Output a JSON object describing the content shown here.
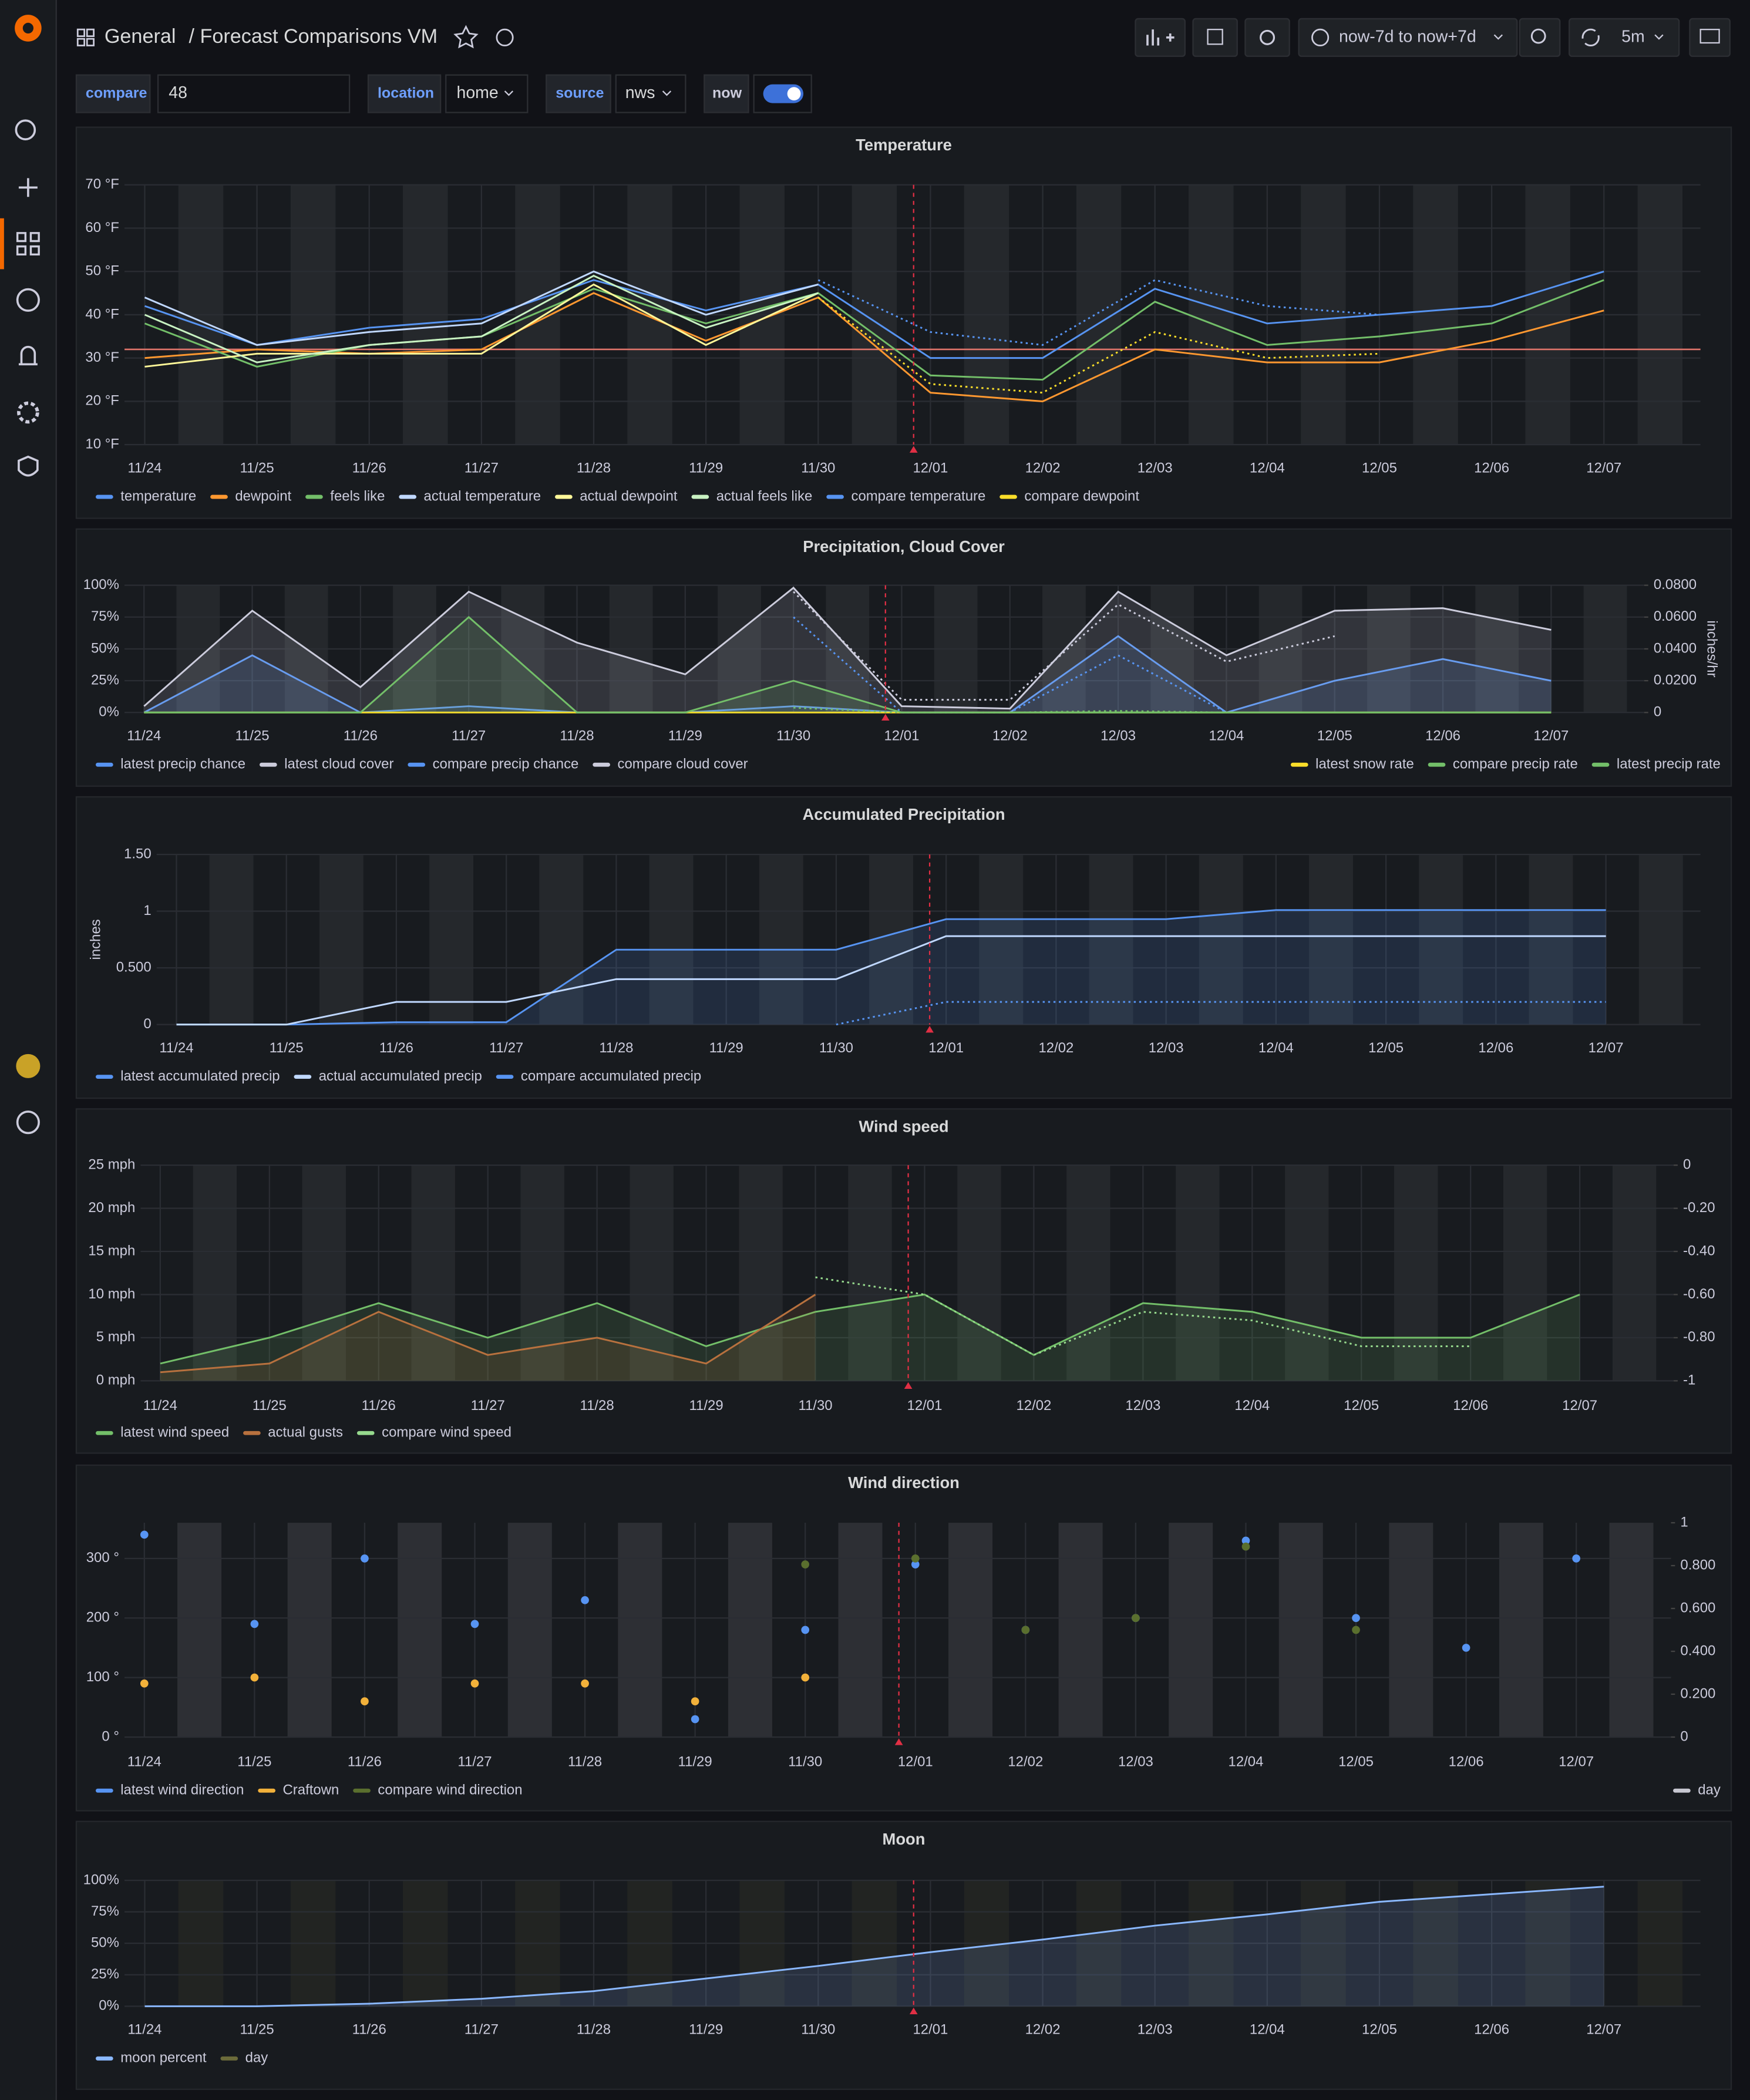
{
  "header": {
    "folder": "General",
    "title": "/ Forecast Comparisons VM",
    "time_range": "now-7d to now+7d",
    "refresh": "5m"
  },
  "variables": [
    {
      "label": "compare",
      "value": "48"
    },
    {
      "label": "location",
      "value": "home"
    },
    {
      "label": "source",
      "value": "nws"
    },
    {
      "label": "now"
    }
  ],
  "chart_data": [
    {
      "type": "line",
      "title": "Temperature",
      "x": [
        "11/24",
        "11/25",
        "11/26",
        "11/27",
        "11/28",
        "11/29",
        "11/30",
        "12/01",
        "12/02",
        "12/03",
        "12/04",
        "12/05",
        "12/06",
        "12/07"
      ],
      "ylim": [
        10,
        70
      ],
      "yticks": [
        {
          "value": 10,
          "label": "10 °F"
        },
        {
          "value": 20,
          "label": "20 °F"
        },
        {
          "value": 30,
          "label": "30 °F"
        },
        {
          "value": 40,
          "label": "40 °F"
        },
        {
          "value": 50,
          "label": "50 °F"
        },
        {
          "value": 60,
          "label": "60 °F"
        },
        {
          "value": 70,
          "label": "70 °F"
        }
      ],
      "threshold": 32,
      "threshold_color": "#e0756b",
      "series": [
        {
          "name": "temperature",
          "color": "#5794f2",
          "values": [
            42,
            33,
            37,
            39,
            48,
            41,
            47,
            30,
            30,
            46,
            38,
            40,
            42,
            50
          ]
        },
        {
          "name": "dewpoint",
          "color": "#ff9830",
          "values": [
            30,
            32,
            31,
            32,
            45,
            34,
            44,
            22,
            20,
            32,
            29,
            29,
            34,
            41
          ]
        },
        {
          "name": "feels like",
          "color": "#73bf69",
          "values": [
            38,
            28,
            33,
            35,
            46,
            38,
            45,
            26,
            25,
            43,
            33,
            35,
            38,
            48
          ]
        },
        {
          "name": "actual temperature",
          "color": "#c0d8ff",
          "values": [
            44,
            33,
            36,
            38,
            50,
            40,
            47,
            null,
            null,
            null,
            null,
            null,
            null,
            null
          ]
        },
        {
          "name": "actual dewpoint",
          "color": "#fff899",
          "values": [
            28,
            31,
            31,
            31,
            47,
            33,
            45,
            null,
            null,
            null,
            null,
            null,
            null,
            null
          ]
        },
        {
          "name": "actual feels like",
          "color": "#c8f2c2",
          "values": [
            40,
            29,
            33,
            35,
            49,
            37,
            45,
            null,
            null,
            null,
            null,
            null,
            null,
            null
          ]
        },
        {
          "name": "compare temperature",
          "color": "#5794f2",
          "style": "dotted",
          "values": [
            null,
            null,
            null,
            null,
            null,
            null,
            48,
            36,
            33,
            48,
            42,
            40,
            null,
            null
          ]
        },
        {
          "name": "compare dewpoint",
          "color": "#fade2a",
          "style": "dotted",
          "values": [
            null,
            null,
            null,
            null,
            null,
            null,
            44,
            24,
            22,
            36,
            30,
            31,
            null,
            null
          ]
        }
      ]
    },
    {
      "type": "line",
      "title": "Precipitation, Cloud Cover",
      "x": [
        "11/24",
        "11/25",
        "11/26",
        "11/27",
        "11/28",
        "11/29",
        "11/30",
        "12/01",
        "12/02",
        "12/03",
        "12/04",
        "12/05",
        "12/06",
        "12/07"
      ],
      "ylim": [
        0,
        100
      ],
      "yticks": [
        {
          "value": 0,
          "label": "0%"
        },
        {
          "value": 25,
          "label": "25%"
        },
        {
          "value": 50,
          "label": "50%"
        },
        {
          "value": 75,
          "label": "75%"
        },
        {
          "value": 100,
          "label": "100%"
        }
      ],
      "y2lim": [
        0,
        0.08
      ],
      "y2ticks": [
        0,
        {
          "value": 0.02,
          "label": "0.0200"
        },
        {
          "value": 0.04,
          "label": "0.0400"
        },
        {
          "value": 0.06,
          "label": "0.0600"
        },
        {
          "value": 0.08,
          "label": "0.0800"
        }
      ],
      "y2label": "inches/hr",
      "series": [
        {
          "name": "latest precip chance",
          "color": "#5794f2",
          "fill": true,
          "values": [
            0,
            45,
            0,
            5,
            0,
            0,
            5,
            0,
            0,
            60,
            0,
            25,
            42,
            25
          ]
        },
        {
          "name": "latest cloud cover",
          "color": "#ccccdc",
          "fill": true,
          "values": [
            5,
            80,
            20,
            95,
            55,
            30,
            98,
            5,
            3,
            95,
            45,
            80,
            82,
            65
          ]
        },
        {
          "name": "compare precip chance",
          "color": "#5794f2",
          "style": "dotted",
          "values": [
            null,
            null,
            null,
            null,
            null,
            null,
            75,
            0,
            0,
            45,
            0,
            null,
            null,
            null
          ]
        },
        {
          "name": "compare cloud cover",
          "color": "#ccccdc",
          "style": "dotted",
          "values": [
            null,
            null,
            null,
            null,
            null,
            null,
            95,
            10,
            10,
            85,
            40,
            60,
            null,
            null
          ]
        },
        {
          "name": "latest snow rate",
          "color": "#fade2a",
          "axis": "y2",
          "values": [
            0,
            0,
            0,
            0,
            0,
            0,
            0,
            0,
            0,
            0,
            0,
            0,
            0,
            0
          ]
        },
        {
          "name": "compare precip rate",
          "color": "#73bf69",
          "axis": "y2",
          "style": "dotted",
          "values": [
            null,
            null,
            null,
            null,
            null,
            null,
            0.003,
            0,
            0,
            0.001,
            0,
            null,
            null,
            null
          ]
        },
        {
          "name": "latest precip rate",
          "color": "#73bf69",
          "axis": "y2",
          "fill": true,
          "values": [
            0,
            0,
            0,
            0.06,
            0,
            0,
            0.02,
            0,
            0,
            0,
            0,
            0,
            0,
            0
          ]
        }
      ]
    },
    {
      "type": "line",
      "title": "Accumulated Precipitation",
      "x": [
        "11/24",
        "11/25",
        "11/26",
        "11/27",
        "11/28",
        "11/29",
        "11/30",
        "12/01",
        "12/02",
        "12/03",
        "12/04",
        "12/05",
        "12/06",
        "12/07"
      ],
      "ylim": [
        0,
        1.5
      ],
      "yticks": [
        0,
        {
          "value": 0.5,
          "label": "0.500"
        },
        1,
        {
          "value": 1.5,
          "label": "1.50"
        }
      ],
      "ylabel": "inches",
      "series": [
        {
          "name": "latest accumulated precip",
          "color": "#5794f2",
          "fill": true,
          "values": [
            0,
            0,
            0.02,
            0.02,
            0.66,
            0.66,
            0.66,
            0.93,
            0.93,
            0.93,
            1.01,
            1.01,
            1.01,
            1.01
          ]
        },
        {
          "name": "actual accumulated precip",
          "color": "#c0d8ff",
          "values": [
            0,
            0,
            0.2,
            0.2,
            0.4,
            0.4,
            0.4,
            0.78,
            0.78,
            0.78,
            0.78,
            0.78,
            0.78,
            0.78
          ]
        },
        {
          "name": "compare accumulated precip",
          "color": "#5794f2",
          "style": "dotted",
          "values": [
            null,
            null,
            null,
            null,
            null,
            null,
            0,
            0.2,
            0.2,
            0.2,
            0.2,
            0.2,
            0.2,
            0.2
          ]
        }
      ]
    },
    {
      "type": "line",
      "title": "Wind speed",
      "x": [
        "11/24",
        "11/25",
        "11/26",
        "11/27",
        "11/28",
        "11/29",
        "11/30",
        "12/01",
        "12/02",
        "12/03",
        "12/04",
        "12/05",
        "12/06",
        "12/07"
      ],
      "ylim": [
        0,
        25
      ],
      "yticks": [
        {
          "value": 0,
          "label": "0 mph"
        },
        {
          "value": 5,
          "label": "5 mph"
        },
        {
          "value": 10,
          "label": "10 mph"
        },
        {
          "value": 15,
          "label": "15 mph"
        },
        {
          "value": 20,
          "label": "20 mph"
        },
        {
          "value": 25,
          "label": "25 mph"
        }
      ],
      "y2lim": [
        -1,
        0
      ],
      "y2ticks": [
        -1,
        {
          "value": -0.8,
          "label": "-0.80"
        },
        {
          "value": -0.6,
          "label": "-0.60"
        },
        {
          "value": -0.4,
          "label": "-0.40"
        },
        {
          "value": -0.2,
          "label": "-0.20"
        },
        0
      ],
      "series": [
        {
          "name": "latest wind speed",
          "color": "#73bf69",
          "fill": true,
          "values": [
            2,
            5,
            9,
            5,
            9,
            4,
            8,
            10,
            3,
            9,
            8,
            5,
            5,
            10
          ]
        },
        {
          "name": "actual gusts",
          "color": "#b8713e",
          "fill": true,
          "values": [
            1,
            2,
            8,
            3,
            5,
            2,
            10,
            null,
            null,
            null,
            null,
            null,
            null,
            null
          ]
        },
        {
          "name": "compare wind speed",
          "color": "#96d98d",
          "style": "dotted",
          "values": [
            null,
            null,
            null,
            null,
            null,
            null,
            12,
            10,
            3,
            8,
            7,
            4,
            4,
            null
          ]
        }
      ]
    },
    {
      "type": "scatter",
      "title": "Wind direction",
      "x": [
        "11/24",
        "11/25",
        "11/26",
        "11/27",
        "11/28",
        "11/29",
        "11/30",
        "12/01",
        "12/02",
        "12/03",
        "12/04",
        "12/05",
        "12/06",
        "12/07"
      ],
      "ylim": [
        0,
        360
      ],
      "yticks": [
        {
          "value": 0,
          "label": "0 °"
        },
        {
          "value": 100,
          "label": "100 °"
        },
        {
          "value": 200,
          "label": "200 °"
        },
        {
          "value": 300,
          "label": "300 °"
        }
      ],
      "y2lim": [
        0,
        1
      ],
      "y2ticks": [
        0,
        {
          "value": 0.2,
          "label": "0.200"
        },
        {
          "value": 0.4,
          "label": "0.400"
        },
        {
          "value": 0.6,
          "label": "0.600"
        },
        {
          "value": 0.8,
          "label": "0.800"
        },
        1
      ],
      "series": [
        {
          "name": "latest wind direction",
          "color": "#5794f2",
          "values": [
            340,
            190,
            300,
            190,
            230,
            30,
            180,
            290,
            180,
            200,
            330,
            200,
            150,
            300
          ]
        },
        {
          "name": "Craftown",
          "color": "#f2b13a",
          "values": [
            90,
            100,
            60,
            90,
            90,
            60,
            100,
            null,
            null,
            null,
            null,
            null,
            null,
            null
          ]
        },
        {
          "name": "compare wind direction",
          "color": "#5a6f2e",
          "values": [
            null,
            null,
            null,
            null,
            null,
            null,
            290,
            300,
            180,
            200,
            320,
            180,
            null,
            null
          ]
        },
        {
          "name": "day",
          "color": "#c7c7d1",
          "axis": "y2",
          "bands": true
        }
      ]
    },
    {
      "type": "line",
      "title": "Moon",
      "x": [
        "11/24",
        "11/25",
        "11/26",
        "11/27",
        "11/28",
        "11/29",
        "11/30",
        "12/01",
        "12/02",
        "12/03",
        "12/04",
        "12/05",
        "12/06",
        "12/07"
      ],
      "ylim": [
        0,
        100
      ],
      "yticks": [
        {
          "value": 0,
          "label": "0%"
        },
        {
          "value": 25,
          "label": "25%"
        },
        {
          "value": 50,
          "label": "50%"
        },
        {
          "value": 75,
          "label": "75%"
        },
        {
          "value": 100,
          "label": "100%"
        }
      ],
      "series": [
        {
          "name": "moon percent",
          "color": "#8ab8ff",
          "fill": true,
          "values": [
            0,
            0,
            2,
            6,
            12,
            22,
            32,
            43,
            53,
            64,
            73,
            83,
            89,
            95
          ]
        },
        {
          "name": "day",
          "color": "#6b6b3a",
          "bands": true
        }
      ]
    }
  ]
}
